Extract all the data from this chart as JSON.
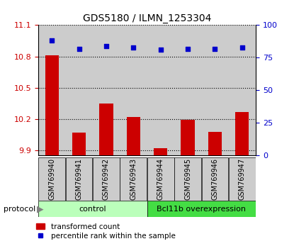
{
  "title": "GDS5180 / ILMN_1253304",
  "samples": [
    "GSM769940",
    "GSM769941",
    "GSM769942",
    "GSM769943",
    "GSM769944",
    "GSM769945",
    "GSM769946",
    "GSM769947"
  ],
  "bar_values": [
    10.81,
    10.07,
    10.35,
    10.22,
    9.92,
    10.19,
    10.08,
    10.27
  ],
  "dot_values": [
    88,
    82,
    84,
    83,
    81,
    82,
    82,
    83
  ],
  "ylim_left": [
    9.85,
    11.1
  ],
  "ylim_right": [
    0,
    100
  ],
  "yticks_left": [
    9.9,
    10.2,
    10.5,
    10.8,
    11.1
  ],
  "yticks_right": [
    0,
    25,
    50,
    75,
    100
  ],
  "bar_color": "#cc0000",
  "dot_color": "#0000cc",
  "bar_bottom": 9.85,
  "groups": [
    {
      "label": "control",
      "start": 0,
      "end": 4,
      "color": "#bbffbb"
    },
    {
      "label": "Bcl11b overexpression",
      "start": 4,
      "end": 8,
      "color": "#44dd44"
    }
  ],
  "protocol_label": "protocol",
  "legend_bar_label": "transformed count",
  "legend_dot_label": "percentile rank within the sample",
  "grid_color": "#000000",
  "bg_color": "#ffffff",
  "tick_label_color_left": "#cc0000",
  "tick_label_color_right": "#0000cc",
  "sample_box_color": "#cccccc",
  "axis_spine_color": "#000000",
  "title_fontsize": 10
}
